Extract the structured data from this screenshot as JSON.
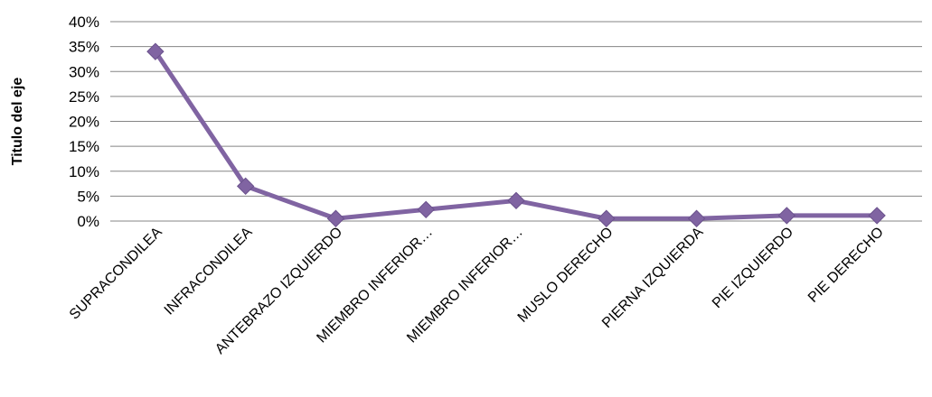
{
  "chart_data": {
    "type": "line",
    "title": "",
    "xlabel": "",
    "ylabel": "Titulo del eje",
    "categories": [
      "SUPRACONDILEA",
      "INFRACONDILEA",
      "ANTEBRAZO IZQUIERDO",
      "MIEMBRO INFERIOR…",
      "MIEMBRO INFERIOR…",
      "MUSLO DERECHO",
      "PIERNA IZQUIERDA",
      "PIE IZQUIERDO",
      "PIE DERECHO"
    ],
    "series": [
      {
        "values": [
          34,
          7,
          0.5,
          2.3,
          4.1,
          0.5,
          0.5,
          1.1,
          1.1
        ]
      }
    ],
    "ylim": [
      0,
      40
    ],
    "yticks": [
      0,
      5,
      10,
      15,
      20,
      25,
      30,
      35,
      40
    ],
    "ytick_labels": [
      "0%",
      "5%",
      "10%",
      "15%",
      "20%",
      "25%",
      "30%",
      "35%",
      "40%"
    ],
    "grid": true,
    "legend": "none",
    "colors": {
      "line": "#8064A2",
      "marker": "#8064A2",
      "grid": "#858585"
    }
  }
}
